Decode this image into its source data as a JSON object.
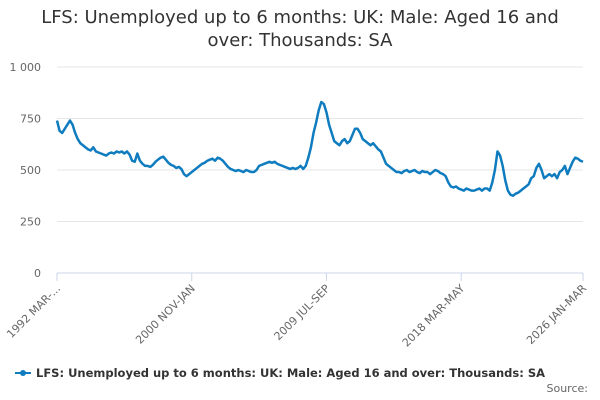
{
  "chart_data": {
    "type": "line",
    "title": "LFS: Unemployed up to 6 months: UK: Male: Aged 16 and over: Thousands: SA",
    "source": "Source:",
    "categories": [
      "1992 MAR-...",
      null,
      null,
      null,
      null,
      null,
      null,
      null,
      null,
      null,
      null,
      null,
      null,
      null,
      null,
      null,
      null,
      null,
      null,
      null,
      null,
      null,
      null,
      null,
      null,
      null,
      null,
      null,
      null,
      null,
      null,
      null,
      null,
      null,
      null,
      null,
      null,
      null,
      null,
      null,
      null,
      null,
      null,
      null,
      null,
      null,
      null,
      null,
      null,
      null,
      null,
      null,
      "2000 NOV-JAN",
      null,
      null,
      null,
      null,
      null,
      null,
      null,
      null,
      null,
      null,
      null,
      null,
      null,
      null,
      null,
      null,
      null,
      null,
      null,
      null,
      null,
      null,
      null,
      null,
      null,
      null,
      null,
      null,
      null,
      null,
      null,
      null,
      null,
      null,
      null,
      null,
      null,
      null,
      null,
      null,
      null,
      null,
      null,
      null,
      null,
      null,
      null,
      null,
      null,
      null,
      null,
      "2009 JUL-SEP",
      null,
      null,
      null,
      null,
      null,
      null,
      null,
      null,
      null,
      null,
      null,
      null,
      null,
      null,
      null,
      null,
      null,
      null,
      null,
      null,
      null,
      null,
      null,
      null,
      null,
      null,
      null,
      null,
      null,
      null,
      null,
      null,
      null,
      null,
      null,
      null,
      null,
      null,
      null,
      null,
      null,
      null,
      null,
      null,
      null,
      null,
      null,
      null,
      null,
      null,
      null,
      "2018 MAR-MAY",
      null,
      null,
      null,
      null,
      null,
      null,
      null,
      null,
      null,
      null,
      null,
      null,
      null,
      null,
      null,
      null,
      null,
      null,
      null,
      null,
      null,
      null,
      null,
      null,
      null,
      null,
      null,
      null,
      null,
      null,
      null,
      null,
      null,
      null,
      null,
      null,
      null,
      null,
      null,
      null,
      null,
      null,
      null,
      null,
      null,
      null,
      "2026 JAN-MAR"
    ],
    "series": [
      {
        "name": "LFS: Unemployed up to 6 months: UK: Male: Aged 16 and over: Thousands: SA",
        "color": "#0f7cbf",
        "values": [
          740,
          690,
          680,
          700,
          720,
          740,
          720,
          680,
          650,
          630,
          620,
          610,
          600,
          595,
          610,
          590,
          585,
          580,
          575,
          570,
          580,
          585,
          580,
          590,
          585,
          590,
          580,
          590,
          575,
          545,
          540,
          580,
          545,
          530,
          520,
          520,
          515,
          525,
          540,
          550,
          560,
          565,
          550,
          535,
          525,
          520,
          510,
          515,
          505,
          480,
          470,
          480,
          490,
          500,
          510,
          520,
          530,
          535,
          545,
          550,
          555,
          545,
          560,
          555,
          545,
          530,
          515,
          505,
          500,
          495,
          500,
          495,
          490,
          500,
          495,
          490,
          490,
          500,
          520,
          525,
          530,
          535,
          540,
          535,
          540,
          530,
          525,
          520,
          515,
          510,
          505,
          510,
          505,
          510,
          520,
          505,
          520,
          560,
          610,
          680,
          730,
          790,
          830,
          820,
          780,
          720,
          680,
          640,
          630,
          620,
          640,
          650,
          630,
          640,
          670,
          700,
          700,
          680,
          650,
          640,
          630,
          620,
          630,
          615,
          600,
          590,
          560,
          530,
          520,
          510,
          500,
          490,
          490,
          485,
          495,
          500,
          490,
          495,
          500,
          490,
          485,
          495,
          490,
          490,
          480,
          490,
          500,
          495,
          485,
          480,
          470,
          440,
          420,
          415,
          420,
          410,
          405,
          400,
          410,
          405,
          400,
          400,
          405,
          410,
          400,
          410,
          410,
          400,
          440,
          500,
          590,
          570,
          520,
          450,
          400,
          380,
          375,
          385,
          390,
          400,
          410,
          420,
          430,
          460,
          470,
          510,
          530,
          500,
          460,
          470,
          480,
          470,
          480,
          460,
          490,
          500,
          520,
          480,
          510,
          540,
          560,
          555,
          545,
          540
        ]
      }
    ],
    "ylim": [
      0,
      1000
    ],
    "yticks": [
      0,
      250,
      500,
      750,
      {
        "value": 1000,
        "label": "1 000"
      }
    ],
    "grid": true
  }
}
